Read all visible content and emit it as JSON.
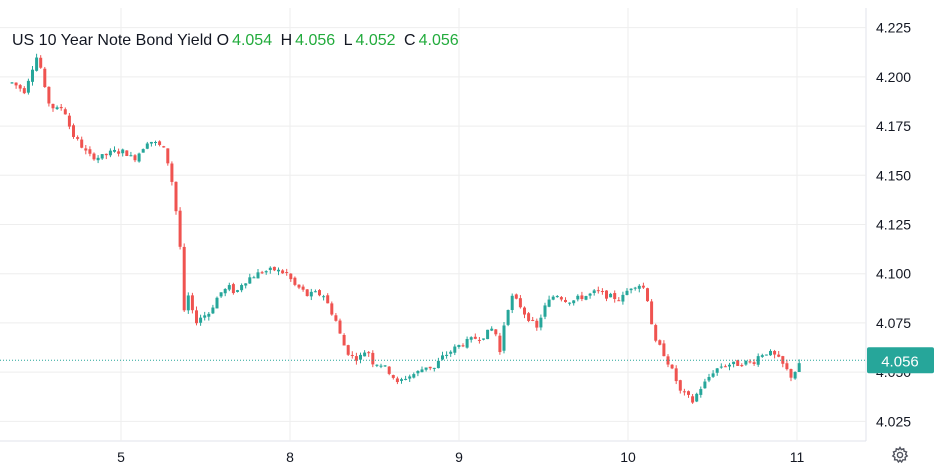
{
  "legend": {
    "title": "US 10 Year Note Bond Yield",
    "o_label": "O",
    "o_value": "4.054",
    "h_label": "H",
    "h_value": "4.056",
    "l_label": "L",
    "l_value": "4.052",
    "c_label": "C",
    "c_value": "4.056"
  },
  "colors": {
    "up": "#26a69a",
    "down": "#ef5350",
    "last_price_bg": "#26a69a",
    "legend_value": "#22ab3c",
    "grid": "#eeeeee"
  },
  "icons": {
    "settings": "gear-icon"
  },
  "chart_data": {
    "type": "candlestick",
    "title": "US 10 Year Note Bond Yield",
    "y_ticks": [
      "4.225",
      "4.200",
      "4.175",
      "4.150",
      "4.125",
      "4.100",
      "4.075",
      "4.050",
      "4.025"
    ],
    "ylim": [
      4.015,
      4.235
    ],
    "x_ticks": [
      "5",
      "8",
      "9",
      "10",
      "11"
    ],
    "last_value": "4.056",
    "grid": true,
    "path": [
      [
        0,
        4.197
      ],
      [
        1.5,
        4.193
      ],
      [
        2.5,
        4.205
      ],
      [
        3.2,
        4.212
      ],
      [
        3.8,
        4.197
      ],
      [
        4.3,
        4.188
      ],
      [
        5.3,
        4.183
      ],
      [
        6.3,
        4.185
      ],
      [
        6.8,
        4.177
      ],
      [
        7.5,
        4.17
      ],
      [
        8.3,
        4.166
      ],
      [
        9.3,
        4.16
      ],
      [
        10.8,
        4.159
      ],
      [
        12.3,
        4.162
      ],
      [
        13.8,
        4.162
      ],
      [
        14.8,
        4.158
      ],
      [
        15.6,
        4.162
      ],
      [
        16.6,
        4.168
      ],
      [
        17.6,
        4.166
      ],
      [
        18.4,
        4.164
      ],
      [
        18.8,
        4.16
      ],
      [
        19.4,
        4.15
      ],
      [
        20.0,
        4.132
      ],
      [
        20.6,
        4.11
      ],
      [
        21.0,
        4.08
      ],
      [
        21.6,
        4.09
      ],
      [
        22.2,
        4.075
      ],
      [
        23.0,
        4.078
      ],
      [
        24.0,
        4.08
      ],
      [
        25.3,
        4.09
      ],
      [
        26.5,
        4.093
      ],
      [
        27.3,
        4.09
      ],
      [
        28.0,
        4.095
      ],
      [
        29.0,
        4.098
      ],
      [
        30.5,
        4.101
      ],
      [
        32.0,
        4.102
      ],
      [
        33.5,
        4.1
      ],
      [
        34.5,
        4.094
      ],
      [
        35.3,
        4.092
      ],
      [
        36.0,
        4.089
      ],
      [
        37.0,
        4.09
      ],
      [
        38.0,
        4.089
      ],
      [
        38.8,
        4.082
      ],
      [
        39.5,
        4.076
      ],
      [
        40.3,
        4.065
      ],
      [
        41.0,
        4.06
      ],
      [
        41.8,
        4.057
      ],
      [
        42.5,
        4.058
      ],
      [
        43.3,
        4.062
      ],
      [
        44.0,
        4.055
      ],
      [
        45.0,
        4.054
      ],
      [
        46.3,
        4.049
      ],
      [
        47.0,
        4.044
      ],
      [
        47.8,
        4.047
      ],
      [
        48.5,
        4.048
      ],
      [
        49.5,
        4.05
      ],
      [
        50.5,
        4.053
      ],
      [
        51.5,
        4.052
      ],
      [
        52.3,
        4.057
      ],
      [
        53.3,
        4.06
      ],
      [
        54.3,
        4.063
      ],
      [
        55.3,
        4.065
      ],
      [
        56.3,
        4.067
      ],
      [
        57.3,
        4.068
      ],
      [
        58.0,
        4.07
      ],
      [
        58.8,
        4.073
      ],
      [
        59.5,
        4.06
      ],
      [
        60.2,
        4.08
      ],
      [
        61.0,
        4.088
      ],
      [
        61.8,
        4.085
      ],
      [
        62.5,
        4.08
      ],
      [
        63.3,
        4.076
      ],
      [
        64.0,
        4.072
      ],
      [
        64.8,
        4.082
      ],
      [
        65.5,
        4.086
      ],
      [
        66.3,
        4.09
      ],
      [
        67.3,
        4.087
      ],
      [
        68.3,
        4.086
      ],
      [
        69.3,
        4.088
      ],
      [
        70.3,
        4.089
      ],
      [
        71.3,
        4.091
      ],
      [
        72.3,
        4.089
      ],
      [
        73.3,
        4.088
      ],
      [
        74.3,
        4.087
      ],
      [
        75.3,
        4.093
      ],
      [
        76.3,
        4.095
      ],
      [
        77.3,
        4.092
      ],
      [
        77.8,
        4.08
      ],
      [
        78.4,
        4.065
      ],
      [
        79.2,
        4.062
      ],
      [
        80.0,
        4.055
      ],
      [
        80.8,
        4.048
      ],
      [
        81.5,
        4.04
      ],
      [
        82.3,
        4.038
      ],
      [
        83.0,
        4.035
      ],
      [
        83.8,
        4.041
      ],
      [
        84.6,
        4.045
      ],
      [
        85.4,
        4.05
      ],
      [
        86.4,
        4.053
      ],
      [
        87.4,
        4.054
      ],
      [
        88.4,
        4.054
      ],
      [
        89.4,
        4.055
      ],
      [
        90.4,
        4.055
      ],
      [
        91.2,
        4.059
      ],
      [
        92.0,
        4.06
      ],
      [
        92.8,
        4.059
      ],
      [
        93.6,
        4.056
      ],
      [
        94.3,
        4.052
      ],
      [
        95.0,
        4.048
      ],
      [
        95.8,
        4.052
      ],
      [
        96.4,
        4.056
      ]
    ]
  }
}
